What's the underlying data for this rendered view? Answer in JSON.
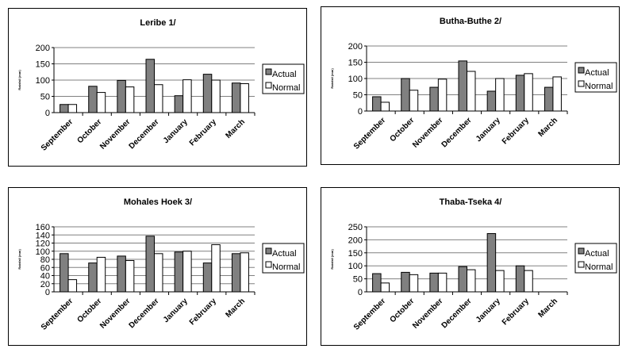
{
  "chart_data": [
    {
      "type": "bar",
      "title": "Leribe 1/",
      "ylabel": "Rainfall (mm)",
      "ylim": [
        0,
        200
      ],
      "yticks": [
        0,
        50,
        100,
        150,
        200
      ],
      "categories": [
        "September",
        "October",
        "November",
        "December",
        "January",
        "February",
        "March"
      ],
      "series": [
        {
          "name": "Actual",
          "color": "#808080",
          "values": [
            25,
            81,
            99,
            164,
            52,
            118,
            91
          ]
        },
        {
          "name": "Normal",
          "color": "#ffffff",
          "values": [
            25,
            62,
            79,
            86,
            101,
            100,
            89
          ]
        }
      ],
      "legend": "right",
      "grid": true
    },
    {
      "type": "bar",
      "title": "Butha-Buthe 2/",
      "ylabel": "Rainfall (mm)",
      "ylim": [
        0,
        200
      ],
      "yticks": [
        0,
        50,
        100,
        150,
        200
      ],
      "categories": [
        "September",
        "October",
        "November",
        "December",
        "January",
        "February",
        "March"
      ],
      "series": [
        {
          "name": "Actual",
          "color": "#808080",
          "values": [
            44,
            100,
            73,
            154,
            61,
            110,
            73
          ]
        },
        {
          "name": "Normal",
          "color": "#ffffff",
          "values": [
            27,
            64,
            98,
            122,
            100,
            115,
            105
          ]
        }
      ],
      "legend": "right",
      "grid": true
    },
    {
      "type": "bar",
      "title": "Mohales Hoek 3/",
      "ylabel": "Rainfall (mm)",
      "ylim": [
        0,
        160
      ],
      "yticks": [
        0,
        20,
        40,
        60,
        80,
        100,
        120,
        140,
        160
      ],
      "categories": [
        "September",
        "October",
        "November",
        "December",
        "January",
        "February",
        "March"
      ],
      "series": [
        {
          "name": "Actual",
          "color": "#808080",
          "values": [
            94,
            71,
            88,
            137,
            98,
            71,
            94
          ]
        },
        {
          "name": "Normal",
          "color": "#ffffff",
          "values": [
            30,
            85,
            77,
            94,
            100,
            116,
            96
          ]
        }
      ],
      "legend": "right",
      "grid": true
    },
    {
      "type": "bar",
      "title": "Thaba-Tseka 4/",
      "ylabel": "Rainfall (mm)",
      "ylim": [
        0,
        250
      ],
      "yticks": [
        0,
        50,
        100,
        150,
        200,
        250
      ],
      "categories": [
        "September",
        "October",
        "November",
        "December",
        "January",
        "February",
        "March"
      ],
      "series": [
        {
          "name": "Actual",
          "color": "#808080",
          "values": [
            70,
            75,
            72,
            97,
            224,
            100,
            null
          ]
        },
        {
          "name": "Normal",
          "color": "#ffffff",
          "values": [
            34,
            66,
            72,
            85,
            82,
            82,
            null
          ]
        }
      ],
      "legend": "right",
      "grid": true
    }
  ]
}
